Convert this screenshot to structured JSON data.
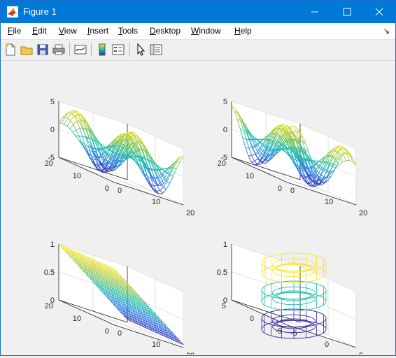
{
  "window": {
    "title": "Figure 1",
    "minimize_glyph": "—",
    "maximize_glyph": "☐",
    "close_glyph": "✕"
  },
  "menu": [
    {
      "key": "F",
      "rest": "ile"
    },
    {
      "key": "E",
      "rest": "dit"
    },
    {
      "key": "V",
      "rest": "iew"
    },
    {
      "key": "I",
      "rest": "nsert"
    },
    {
      "key": "T",
      "rest": "ools"
    },
    {
      "key": "D",
      "rest": "esktop"
    },
    {
      "key": "W",
      "rest": "indow"
    },
    {
      "key": "H",
      "rest": "elp"
    }
  ],
  "toolbar": [
    "new-figure-icon",
    "open-file-icon",
    "save-icon",
    "print-icon",
    "link-plot-icon",
    "colorbar-icon",
    "legend-icon",
    "pointer-icon",
    "property-inspector-icon"
  ],
  "colors": {
    "title_bar": "#0078d7",
    "surface_low": "#3d26a8",
    "surface_mid": "#1fc0aa",
    "surface_high": "#f9e52a"
  },
  "chart_data": [
    {
      "type": "surface",
      "position": "top-left",
      "function": "wavy mesh, peaks and troughs",
      "z_ticks": [
        "5",
        "0",
        "-5"
      ],
      "zlim": [
        -5,
        5
      ],
      "x_ticks": [
        "0",
        "10",
        "20"
      ],
      "y_ticks": [
        "20",
        "10",
        "0"
      ]
    },
    {
      "type": "surface",
      "position": "top-right",
      "function": "wavy mesh, phase shifted",
      "z_ticks": [
        "5",
        "0",
        "-5"
      ],
      "zlim": [
        -5,
        5
      ],
      "x_ticks": [
        "0",
        "10",
        "20"
      ],
      "y_ticks": [
        "20",
        "10",
        "0"
      ]
    },
    {
      "type": "surface",
      "position": "bottom-left",
      "function": "tilted plane",
      "z_ticks": [
        "1",
        "0.5",
        "0"
      ],
      "zlim": [
        0,
        1
      ],
      "x_ticks": [
        "0",
        "10",
        "20"
      ],
      "y_ticks": [
        "20",
        "10",
        "0"
      ]
    },
    {
      "type": "surface",
      "position": "bottom-right",
      "function": "stacked bowl-shaped rings",
      "z_ticks": [
        "1",
        "0.5",
        "0"
      ],
      "zlim": [
        0,
        1
      ],
      "x_ticks": [
        "-5",
        "0",
        "5"
      ],
      "y_ticks": [
        "5",
        "0",
        "-5"
      ]
    }
  ]
}
